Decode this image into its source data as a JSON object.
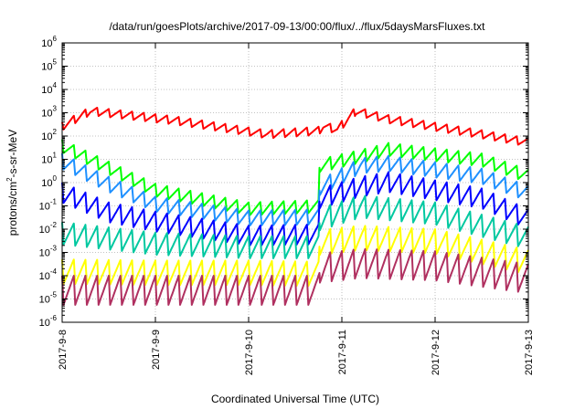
{
  "chart_data": {
    "type": "line",
    "title": "/data/run/goesPlots/archive/2017-09-13/00:00/flux/../flux/5daysMarsFluxes.txt",
    "xlabel": "Coordinated Universal Time (UTC)",
    "ylabel": {
      "prefix": "protons/cm",
      "sup": "2",
      "suffix": "-s-sr-MeV"
    },
    "yscale": "log",
    "ylim_exponents": [
      -6,
      6
    ],
    "y_ticks": [
      {
        "base": "10",
        "exp": "-6"
      },
      {
        "base": "10",
        "exp": "-5"
      },
      {
        "base": "10",
        "exp": "-4"
      },
      {
        "base": "10",
        "exp": "-3"
      },
      {
        "base": "10",
        "exp": "-2"
      },
      {
        "base": "10",
        "exp": "-1"
      },
      {
        "base": "10",
        "exp": "0"
      },
      {
        "base": "10",
        "exp": "1"
      },
      {
        "base": "10",
        "exp": "2"
      },
      {
        "base": "10",
        "exp": "3"
      },
      {
        "base": "10",
        "exp": "4"
      },
      {
        "base": "10",
        "exp": "5"
      },
      {
        "base": "10",
        "exp": "6"
      }
    ],
    "x_ticks": [
      "2017-9-8",
      "2017-9-9",
      "2017-9-10",
      "2017-9-11",
      "2017-9-12",
      "2017-9-13"
    ],
    "grid": true,
    "series_profiles": [
      {
        "color": "#ff0000",
        "log10_anchors": [
          [
            0.0,
            2.6
          ],
          [
            0.3,
            3.25
          ],
          [
            1.2,
            2.85
          ],
          [
            2.2,
            2.25
          ],
          [
            2.75,
            2.4
          ],
          [
            2.8,
            2.6
          ],
          [
            2.95,
            2.45
          ],
          [
            3.15,
            3.25
          ],
          [
            3.5,
            2.9
          ],
          [
            4.5,
            2.25
          ],
          [
            5.0,
            1.9
          ]
        ],
        "sawtooth_depth": 0.35
      },
      {
        "color": "#00ff00",
        "log10_anchors": [
          [
            0.0,
            1.85
          ],
          [
            0.5,
            0.9
          ],
          [
            1.0,
            -0.05
          ],
          [
            2.0,
            -0.85
          ],
          [
            2.75,
            -0.75
          ],
          [
            2.76,
            1.0
          ],
          [
            3.2,
            1.4
          ],
          [
            3.5,
            1.7
          ],
          [
            4.5,
            1.25
          ],
          [
            5.0,
            0.55
          ]
        ],
        "sawtooth_depth": 0.55
      },
      {
        "color": "#1e90ff",
        "log10_anchors": [
          [
            0.0,
            1.25
          ],
          [
            0.5,
            0.25
          ],
          [
            1.0,
            -0.6
          ],
          [
            2.0,
            -1.2
          ],
          [
            2.75,
            -1.15
          ],
          [
            2.76,
            0.1
          ],
          [
            3.2,
            1.05
          ],
          [
            3.5,
            1.15
          ],
          [
            4.5,
            0.6
          ],
          [
            5.0,
            -0.15
          ]
        ],
        "sawtooth_depth": 0.65
      },
      {
        "color": "#0000ff",
        "log10_anchors": [
          [
            0.0,
            0.0
          ],
          [
            0.5,
            -0.85
          ],
          [
            1.0,
            -1.25
          ],
          [
            2.0,
            -1.85
          ],
          [
            2.75,
            -1.8
          ],
          [
            2.76,
            -0.25
          ],
          [
            3.2,
            0.25
          ],
          [
            3.5,
            0.45
          ],
          [
            4.5,
            -0.25
          ],
          [
            5.0,
            -1.15
          ]
        ],
        "sawtooth_depth": 0.85
      },
      {
        "color": "#00c8a0",
        "log10_anchors": [
          [
            0.0,
            -1.7
          ],
          [
            1.0,
            -2.15
          ],
          [
            2.0,
            -2.3
          ],
          [
            2.75,
            -2.3
          ],
          [
            2.76,
            -1.1
          ],
          [
            3.2,
            -0.55
          ],
          [
            4.0,
            -0.85
          ],
          [
            5.0,
            -1.9
          ]
        ],
        "sawtooth_depth": 0.95
      },
      {
        "color": "#ffff00",
        "log10_anchors": [
          [
            0.0,
            -3.3
          ],
          [
            1.0,
            -3.35
          ],
          [
            2.0,
            -3.35
          ],
          [
            2.75,
            -3.4
          ],
          [
            2.76,
            -2.05
          ],
          [
            3.2,
            -1.85
          ],
          [
            4.0,
            -2.0
          ],
          [
            5.0,
            -2.9
          ]
        ],
        "sawtooth_depth": 1.05
      },
      {
        "color": "#b03060",
        "log10_anchors": [
          [
            0.0,
            -4.0
          ],
          [
            2.75,
            -4.0
          ],
          [
            2.76,
            -3.05
          ],
          [
            3.2,
            -2.85
          ],
          [
            4.0,
            -2.95
          ],
          [
            5.0,
            -3.5
          ]
        ],
        "sawtooth_depth": 1.25
      }
    ]
  }
}
